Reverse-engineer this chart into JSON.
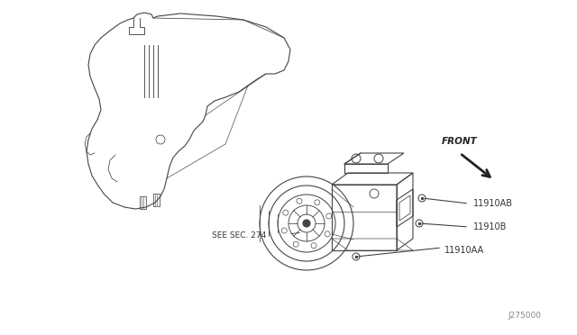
{
  "background_color": "#ffffff",
  "line_color": "#444444",
  "text_color": "#333333",
  "part_labels": [
    "11910AB",
    "11910B",
    "11910AA"
  ],
  "see_sec_text": "SEE SEC. 274",
  "front_text": "FRONT",
  "diagram_id": "J275000",
  "lw": 0.8
}
